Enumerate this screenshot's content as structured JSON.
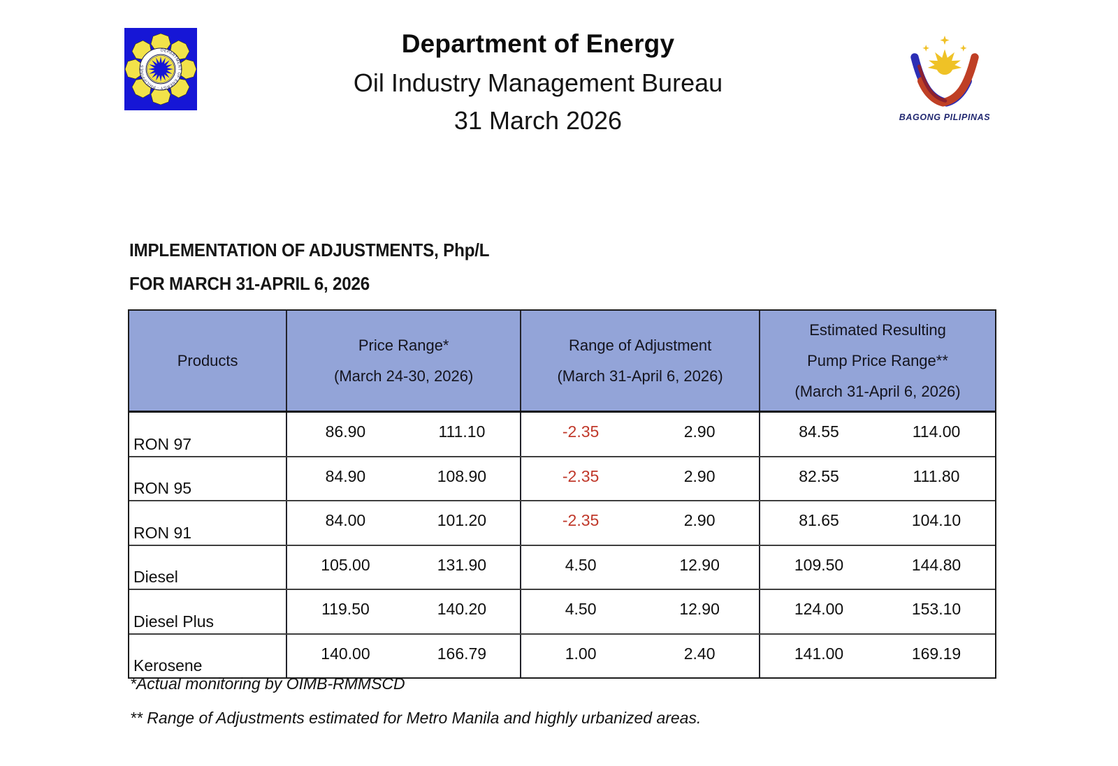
{
  "page": {
    "title": "Department of Energy",
    "subtitle": "Oil Industry Management Bureau",
    "date": "31 March 2026"
  },
  "logos": {
    "doe_ring_text": "DEPARTMENT OF ENERGY · PHILIPPINES",
    "bagong_pilipinas_caption": "BAGONG PILIPINAS"
  },
  "section": {
    "heading_line1": "IMPLEMENTATION OF ADJUSTMENTS, Php/L",
    "heading_line2": "FOR MARCH 31-APRIL 6, 2026"
  },
  "table": {
    "columns": [
      {
        "label": "Products"
      },
      {
        "label": "Price Range*\n(March 24-30, 2026)"
      },
      {
        "label": "Range of Adjustment\n(March 31-April 6, 2026)"
      },
      {
        "label": "Estimated Resulting\nPump Price Range**\n(March 31-April 6, 2026)"
      }
    ],
    "rows": [
      {
        "product": "RON 97",
        "price_min": "86.90",
        "price_max": "111.10",
        "adj_min": "-2.35",
        "adj_max": "2.90",
        "pump_min": "84.55",
        "pump_max": "114.00"
      },
      {
        "product": "RON 95",
        "price_min": "84.90",
        "price_max": "108.90",
        "adj_min": "-2.35",
        "adj_max": "2.90",
        "pump_min": "82.55",
        "pump_max": "111.80"
      },
      {
        "product": "RON 91",
        "price_min": "84.00",
        "price_max": "101.20",
        "adj_min": "-2.35",
        "adj_max": "2.90",
        "pump_min": "81.65",
        "pump_max": "104.10"
      },
      {
        "product": "Diesel",
        "price_min": "105.00",
        "price_max": "131.90",
        "adj_min": "4.50",
        "adj_max": "12.90",
        "pump_min": "109.50",
        "pump_max": "144.80"
      },
      {
        "product": "Diesel Plus",
        "price_min": "119.50",
        "price_max": "140.20",
        "adj_min": "4.50",
        "adj_max": "12.90",
        "pump_min": "124.00",
        "pump_max": "153.10"
      },
      {
        "product": "Kerosene",
        "price_min": "140.00",
        "price_max": "166.79",
        "adj_min": "1.00",
        "adj_max": "2.40",
        "pump_min": "141.00",
        "pump_max": "169.19"
      }
    ]
  },
  "footnotes": {
    "first": "*Actual monitoring by OIMB-RMMSCD",
    "second": "** Range of Adjustments estimated for Metro Manila and highly urbanized areas."
  },
  "colors": {
    "table_header_fill": "#93a4d8",
    "negative_value_red": "#c0392b",
    "doe_seal_blue": "#1616d6",
    "doe_seal_yellow": "#f2e24a",
    "bp_caption_blue": "#232a72"
  }
}
